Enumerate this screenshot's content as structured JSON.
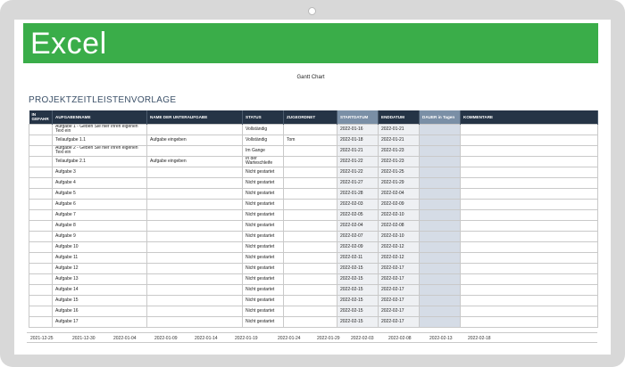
{
  "banner": {
    "logo": "Excel"
  },
  "chart_title": "Gantt Chart",
  "heading": "PROJEKTZEITLEISTENVORLAGE",
  "columns": [
    "IN GEFAHR",
    "AUFGABENNAME",
    "NAME DER UNTERAUFGABE",
    "STATUS",
    "ZUGEORDNET",
    "STARTDATUM",
    "ENDDATUM",
    "DAUER in Tagen",
    "KOMMENTARE"
  ],
  "rows": [
    {
      "risk": "",
      "task": "Aufgabe 1 - Geben Sie hier Ihren eigenen Text ein",
      "sub": "",
      "status": "Vollständig",
      "assigned": "",
      "start": "2022-01-16",
      "end": "2022-01-21",
      "dur": "",
      "comment": ""
    },
    {
      "risk": "",
      "task": "Teilaufgabe 1.1",
      "sub": "Aufgabe eingeben",
      "status": "Vollständig",
      "assigned": "Tom",
      "start": "2022-01-18",
      "end": "2022-01-21",
      "dur": "",
      "comment": ""
    },
    {
      "risk": "",
      "task": "Aufgabe 2 - Geben Sie hier Ihren eigenen Text ein",
      "sub": "",
      "status": "Im Gange",
      "assigned": "",
      "start": "2022-01-21",
      "end": "2022-01-23",
      "dur": "",
      "comment": ""
    },
    {
      "risk": "",
      "task": "Teilaufgabe 2.1",
      "sub": "Aufgabe eingeben",
      "status": "In der Warteschleife",
      "assigned": "",
      "start": "2022-01-22",
      "end": "2022-01-23",
      "dur": "",
      "comment": ""
    },
    {
      "risk": "",
      "task": "Aufgabe 3",
      "sub": "",
      "status": "Nicht gestartet",
      "assigned": "",
      "start": "2022-01-22",
      "end": "2022-01-25",
      "dur": "",
      "comment": ""
    },
    {
      "risk": "",
      "task": "Aufgabe 4",
      "sub": "",
      "status": "Nicht gestartet",
      "assigned": "",
      "start": "2022-01-27",
      "end": "2022-01-29",
      "dur": "",
      "comment": ""
    },
    {
      "risk": "",
      "task": "Aufgabe 5",
      "sub": "",
      "status": "Nicht gestartet",
      "assigned": "",
      "start": "2022-01-28",
      "end": "2022-02-04",
      "dur": "",
      "comment": ""
    },
    {
      "risk": "",
      "task": "Aufgabe 6",
      "sub": "",
      "status": "Nicht gestartet",
      "assigned": "",
      "start": "2022-02-03",
      "end": "2022-02-09",
      "dur": "",
      "comment": ""
    },
    {
      "risk": "",
      "task": "Aufgabe 7",
      "sub": "",
      "status": "Nicht gestartet",
      "assigned": "",
      "start": "2022-02-05",
      "end": "2022-02-10",
      "dur": "",
      "comment": ""
    },
    {
      "risk": "",
      "task": "Aufgabe 8",
      "sub": "",
      "status": "Nicht gestartet",
      "assigned": "",
      "start": "2022-02-04",
      "end": "2022-02-08",
      "dur": "",
      "comment": ""
    },
    {
      "risk": "",
      "task": "Aufgabe 9",
      "sub": "",
      "status": "Nicht gestartet",
      "assigned": "",
      "start": "2022-02-07",
      "end": "2022-02-10",
      "dur": "",
      "comment": ""
    },
    {
      "risk": "",
      "task": "Aufgabe 10",
      "sub": "",
      "status": "Nicht gestartet",
      "assigned": "",
      "start": "2022-02-09",
      "end": "2022-02-12",
      "dur": "",
      "comment": ""
    },
    {
      "risk": "",
      "task": "Aufgabe 11",
      "sub": "",
      "status": "Nicht gestartet",
      "assigned": "",
      "start": "2022-02-11",
      "end": "2022-02-12",
      "dur": "",
      "comment": ""
    },
    {
      "risk": "",
      "task": "Aufgabe 12",
      "sub": "",
      "status": "Nicht gestartet",
      "assigned": "",
      "start": "2022-02-15",
      "end": "2022-02-17",
      "dur": "",
      "comment": ""
    },
    {
      "risk": "",
      "task": "Aufgabe 13",
      "sub": "",
      "status": "Nicht gestartet",
      "assigned": "",
      "start": "2022-02-15",
      "end": "2022-02-17",
      "dur": "",
      "comment": ""
    },
    {
      "risk": "",
      "task": "Aufgabe 14",
      "sub": "",
      "status": "Nicht gestartet",
      "assigned": "",
      "start": "2022-02-15",
      "end": "2022-02-17",
      "dur": "",
      "comment": ""
    },
    {
      "risk": "",
      "task": "Aufgabe 15",
      "sub": "",
      "status": "Nicht gestartet",
      "assigned": "",
      "start": "2022-02-15",
      "end": "2022-02-17",
      "dur": "",
      "comment": ""
    },
    {
      "risk": "",
      "task": "Aufgabe 16",
      "sub": "",
      "status": "Nicht gestartet",
      "assigned": "",
      "start": "2022-02-15",
      "end": "2022-02-17",
      "dur": "",
      "comment": ""
    },
    {
      "risk": "",
      "task": "Aufgabe 17",
      "sub": "",
      "status": "Nicht gestartet",
      "assigned": "",
      "start": "2022-02-15",
      "end": "2022-02-17",
      "dur": "",
      "comment": ""
    }
  ],
  "timeline": [
    "2021-12-25",
    "2021-12-30",
    "2022-01-04",
    "2022-01-09",
    "2022-01-14",
    "2022-01-19",
    "2022-01-24",
    "2022-01-29",
    "2022-02-03",
    "2022-02-08",
    "2022-02-13",
    "2022-02-18"
  ],
  "colors": {
    "banner": "#3aad49",
    "header": "#253446",
    "header_highlight": "#7a8fa6",
    "duration_fill": "#d5dce6"
  }
}
